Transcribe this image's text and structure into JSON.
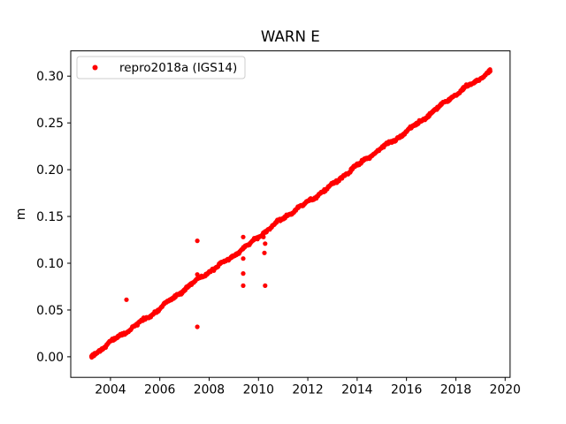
{
  "figure": {
    "background": "#ffffff",
    "frame_color": "#000000",
    "text_color": "#000000"
  },
  "chart_data": {
    "type": "scatter",
    "title": "WARN E",
    "xlabel": "",
    "ylabel": "m",
    "legend": {
      "label": "repro2018a (IGS14)",
      "position": "upper left",
      "marker": "red-dot",
      "border_color": "#cccccc",
      "background": "rgba(255,255,255,0.8)"
    },
    "series_color": "#ff0000",
    "axes": {
      "xlim": [
        2002.39,
        2020.2
      ],
      "ylim": [
        -0.022,
        0.327
      ],
      "x_ticks": [
        2004,
        2006,
        2008,
        2010,
        2012,
        2014,
        2016,
        2018,
        2020
      ],
      "y_ticks": [
        0.0,
        0.05,
        0.1,
        0.15,
        0.2,
        0.25,
        0.3
      ],
      "grid": false
    },
    "trend": {
      "description": "dense weekly position time series, linear drift",
      "t_start": 2003.23,
      "t_end": 2019.4,
      "v_start": 0.0,
      "v_end": 0.306,
      "slope_m_per_yr": 0.0189,
      "points_per_year": 52,
      "scatter_sigma_m": 0.0016
    },
    "outliers": [
      {
        "t": 2004.65,
        "v": 0.061
      },
      {
        "t": 2007.52,
        "v": 0.124
      },
      {
        "t": 2007.52,
        "v": 0.088
      },
      {
        "t": 2007.52,
        "v": 0.032
      },
      {
        "t": 2009.38,
        "v": 0.128
      },
      {
        "t": 2009.38,
        "v": 0.105
      },
      {
        "t": 2009.38,
        "v": 0.089
      },
      {
        "t": 2009.38,
        "v": 0.076
      },
      {
        "t": 2010.2,
        "v": 0.128
      },
      {
        "t": 2010.27,
        "v": 0.121
      },
      {
        "t": 2010.24,
        "v": 0.111
      },
      {
        "t": 2010.27,
        "v": 0.076
      }
    ]
  }
}
